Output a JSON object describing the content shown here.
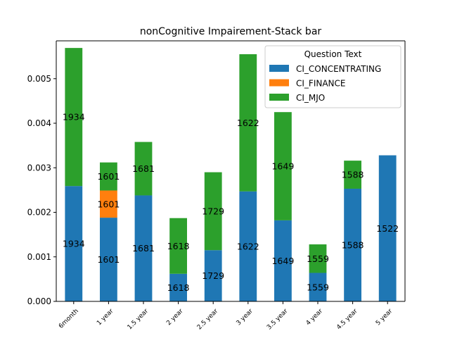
{
  "chart_data": {
    "type": "bar",
    "stacked": true,
    "title": "nonCognitive Impairement-Stack bar",
    "xlabel": "",
    "ylabel": "",
    "categories": [
      "6month",
      "1 year",
      "1.5 year",
      "2 year",
      "2.5 year",
      "3 year",
      "3.5 year",
      "4 year",
      "4.5 year",
      "5 year"
    ],
    "ylim": [
      0,
      0.00585
    ],
    "yticks": [
      0.0,
      0.001,
      0.002,
      0.003,
      0.004,
      0.005
    ],
    "ytick_labels": [
      "0.000",
      "0.001",
      "0.002",
      "0.003",
      "0.004",
      "0.005"
    ],
    "grid": false,
    "legend": {
      "title": "Question Text",
      "placement": "top-right"
    },
    "series": [
      {
        "name": "CI_CONCENTRATING",
        "color": "#1f77b4",
        "values": [
          0.00259,
          0.00188,
          0.00238,
          0.00062,
          0.00115,
          0.00247,
          0.00182,
          0.00064,
          0.00253,
          0.00328
        ],
        "labels": [
          "1934",
          "1601",
          "1681",
          "1618",
          "1729",
          "1622",
          "1649",
          "1559",
          "1588",
          "1522"
        ]
      },
      {
        "name": "CI_FINANCE",
        "color": "#ff7f0e",
        "values": [
          0,
          0.00061,
          0,
          0,
          0,
          0,
          0,
          0,
          0,
          0
        ],
        "labels": [
          "",
          "1601",
          "",
          "",
          "",
          "",
          "",
          "",
          "",
          ""
        ]
      },
      {
        "name": "CI_MJO",
        "color": "#2ca02c",
        "values": [
          0.0031,
          0.00063,
          0.0012,
          0.00125,
          0.00175,
          0.00308,
          0.00243,
          0.00064,
          0.00063,
          0
        ],
        "labels": [
          "1934",
          "1601",
          "1681",
          "1618",
          "1729",
          "1622",
          "1649",
          "1559",
          "1588",
          ""
        ]
      }
    ]
  }
}
